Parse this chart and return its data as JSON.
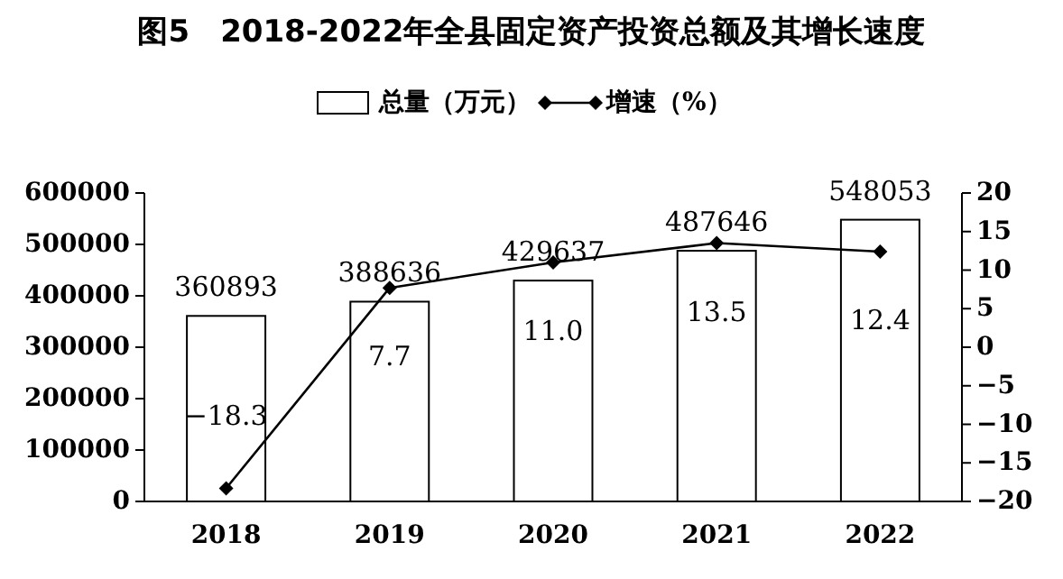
{
  "chart_data": {
    "type": "bar",
    "title": "图5　2018-2022年全县固定资产投资总额及其增长速度",
    "categories": [
      "2018",
      "2019",
      "2020",
      "2021",
      "2022"
    ],
    "series": [
      {
        "name": "总量（万元）",
        "color": "#ffffff",
        "values": [
          360893,
          388636,
          429637,
          487646,
          548053
        ],
        "value_labels": [
          "360893",
          "388636",
          "429637",
          "487646",
          "548053"
        ]
      },
      {
        "name": "增速（%）",
        "type": "line",
        "axis": "y2",
        "color": "#000000",
        "marker": "diamond",
        "values": [
          -18.3,
          7.7,
          11.0,
          13.5,
          12.4
        ],
        "value_labels": [
          "−18.3",
          "7.7",
          "11.0",
          "13.5",
          "12.4"
        ]
      }
    ],
    "ylim": [
      0,
      600000
    ],
    "yticks": [
      0,
      100000,
      200000,
      300000,
      400000,
      500000,
      600000
    ],
    "y2lim": [
      -20,
      20
    ],
    "y2ticks": [
      -20,
      -15,
      -10,
      -5,
      0,
      5,
      10,
      15,
      20
    ],
    "legend": "top",
    "grid": false
  }
}
